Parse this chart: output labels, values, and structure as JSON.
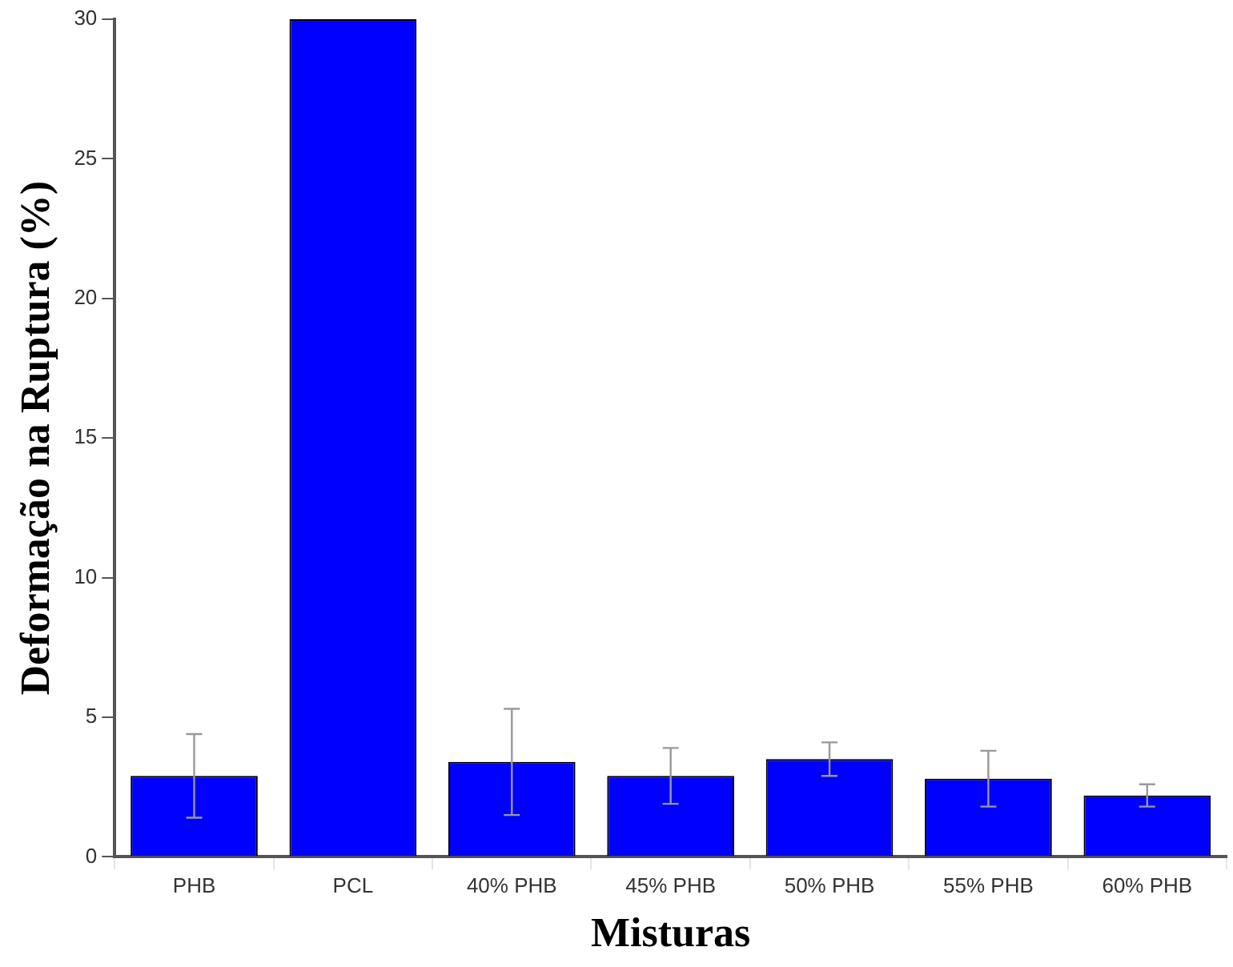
{
  "chart_data": {
    "type": "bar",
    "xlabel": "Misturas",
    "ylabel": "Deformação na Ruptura (%)",
    "categories": [
      "PHB",
      "PCL",
      "40% PHB",
      "45% PHB",
      "50% PHB",
      "55% PHB",
      "60% PHB"
    ],
    "values": [
      2.9,
      30,
      3.4,
      2.9,
      3.5,
      2.8,
      2.2
    ],
    "errors": [
      1.5,
      null,
      1.9,
      1.0,
      0.6,
      1.0,
      0.4
    ],
    "color": "#0000ff",
    "ylim": [
      0,
      30
    ],
    "yticks": [
      0,
      5,
      10,
      15,
      20,
      25,
      30
    ],
    "grid": false,
    "legend": false
  }
}
